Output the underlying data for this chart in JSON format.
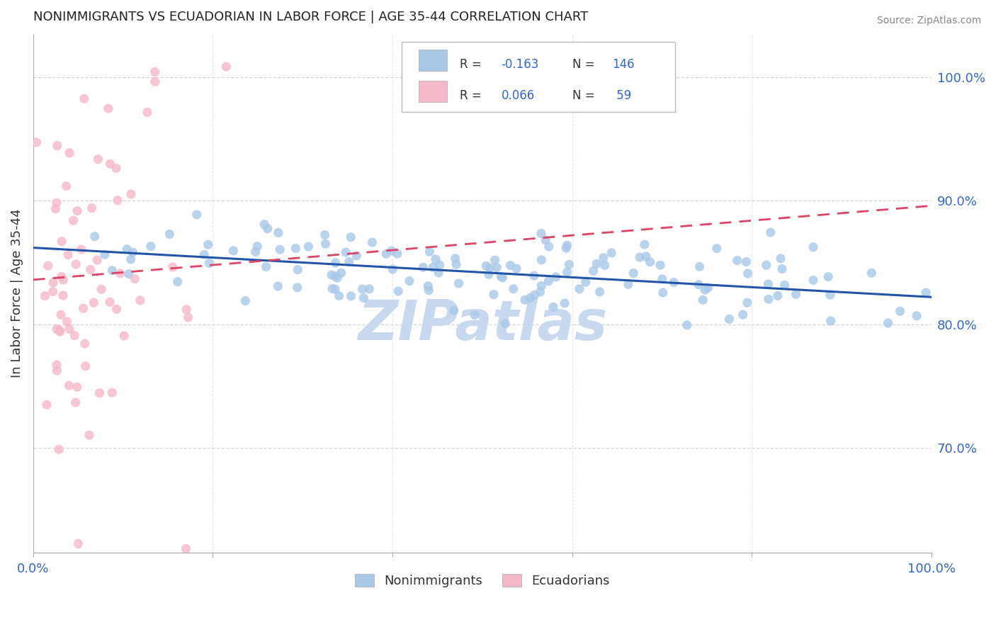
{
  "title": "NONIMMIGRANTS VS ECUADORIAN IN LABOR FORCE | AGE 35-44 CORRELATION CHART",
  "source": "Source: ZipAtlas.com",
  "ylabel": "In Labor Force | Age 35-44",
  "xlim": [
    0.0,
    1.0
  ],
  "ylim": [
    0.615,
    1.035
  ],
  "yticks": [
    0.7,
    0.8,
    0.9,
    1.0
  ],
  "ytick_labels": [
    "70.0%",
    "80.0%",
    "90.0%",
    "100.0%"
  ],
  "xticks": [
    0.0,
    0.2,
    0.4,
    0.6,
    0.8,
    1.0
  ],
  "xtick_labels": [
    "0.0%",
    "",
    "",
    "",
    "",
    "100.0%"
  ],
  "color_nonimm": "#a8c8e8",
  "color_ecuad": "#f5b8c8",
  "color_line_nonimm": "#2255aa",
  "color_line_ecuad": "#dd4466",
  "color_axis_labels": "#3366cc",
  "color_title": "#222222",
  "color_source": "#888888",
  "color_watermark": "#c8d8ee",
  "watermark_text": "ZIPatlas",
  "background_color": "#ffffff",
  "grid_color": "#cccccc",
  "R_nonimm": -0.163,
  "N_nonimm": 146,
  "R_ecuad": 0.066,
  "N_ecuad": 59,
  "nonimm_intercept": 0.862,
  "nonimm_slope": -0.04,
  "ecuad_intercept": 0.836,
  "ecuad_slope": 0.06,
  "seed_nonimm": 7,
  "seed_ecuad": 13
}
